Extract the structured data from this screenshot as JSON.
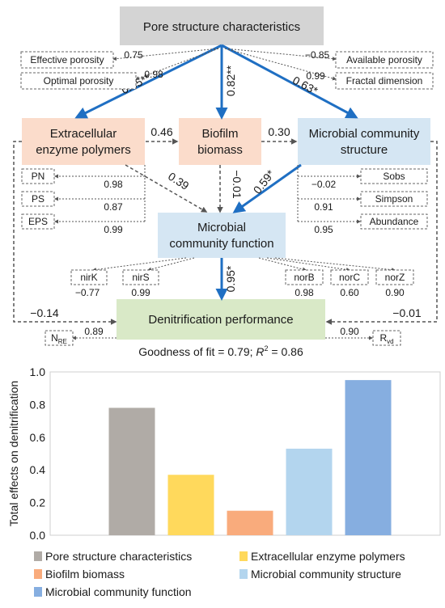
{
  "diagram": {
    "nodes": {
      "pore": "Pore structure characteristics",
      "eep_line1": "Extracellular",
      "eep_line2": "enzyme polymers",
      "biofilm_line1": "Biofilm",
      "biofilm_line2": "biomass",
      "mcs_line1": "Microbial community",
      "mcs_line2": "structure",
      "mcf_line1": "Microbial",
      "mcf_line2": "community function",
      "denit": "Denitrification performance"
    },
    "pore_indicators": [
      {
        "label": "Effective porosity",
        "coef": "0.75"
      },
      {
        "label": "Optimal porosity",
        "coef": "0.98"
      },
      {
        "label": "Available porosity",
        "coef": "−0.85"
      },
      {
        "label": "Fractal dimension",
        "coef": "0.99"
      }
    ],
    "eep_indicators": [
      {
        "label": "PN",
        "coef": "0.98"
      },
      {
        "label": "PS",
        "coef": "0.87"
      },
      {
        "label": "EPS",
        "coef": "0.99"
      }
    ],
    "mcs_indicators": [
      {
        "label": "Sobs",
        "coef": "−0.02"
      },
      {
        "label": "Simpson",
        "coef": "0.91"
      },
      {
        "label": "Abundance",
        "coef": "0.95"
      }
    ],
    "mcf_indicators": [
      {
        "label": "nirK",
        "coef": "−0.77"
      },
      {
        "label": "nirS",
        "coef": "0.99"
      },
      {
        "label": "norB",
        "coef": "0.98"
      },
      {
        "label": "norC",
        "coef": "0.60"
      },
      {
        "label": "norZ",
        "coef": "0.90"
      }
    ],
    "denit_indicators": [
      {
        "label_main": "N",
        "label_sub": "RE",
        "coef": "0.89"
      },
      {
        "label_main": "R",
        "label_sub": "vd",
        "coef": "0.90"
      }
    ],
    "paths": {
      "pore_eep": "0.85**",
      "pore_biofilm": "0.82**",
      "pore_mcs": "0.63*",
      "eep_biofilm": "0.46",
      "biofilm_mcs": "0.30",
      "eep_mcf": "0.39",
      "biofilm_mcf": "−0.01",
      "mcs_mcf": "0.59*",
      "mcf_denit": "0.95*",
      "eep_denit": "−0.14",
      "mcs_denit": "−0.01"
    },
    "fit_prefix": "Goodness of fit = 0.79; ",
    "fit_r": "R",
    "fit_sup": "2",
    "fit_suffix": " = 0.86"
  },
  "chart_data": {
    "type": "bar",
    "ylabel": "Total effects on denitrification",
    "ylim": [
      0,
      1.0
    ],
    "yticks": [
      "0.0",
      "0.2",
      "0.4",
      "0.6",
      "0.8",
      "1.0"
    ],
    "categories": [
      "Pore structure characteristics",
      "Extracellular enzyme polymers",
      "Biofilm biomass",
      "Microbial community structure",
      "Microbial community function"
    ],
    "values": [
      0.78,
      0.37,
      0.15,
      0.53,
      0.95
    ],
    "colors": [
      "#b0aba6",
      "#ffd95c",
      "#f9ab7c",
      "#b3d5ee",
      "#86aee0"
    ],
    "legend": [
      "Pore structure characteristics",
      "Extracellular enzyme polymers",
      "Biofilm biomass",
      "Microbial community structure",
      "Microbial community function"
    ],
    "legend_placement": "bottom"
  },
  "colors": {
    "pore_fill": "#d4d4d4",
    "eep_fill": "#fbdccb",
    "biofilm_fill": "#fbdccb",
    "mcs_fill": "#d5e6f3",
    "mcf_fill": "#d5e6f3",
    "denit_fill": "#d9e9c7",
    "strong_arrow": "#1f6fc3",
    "dashed": "#6b6b6b"
  }
}
